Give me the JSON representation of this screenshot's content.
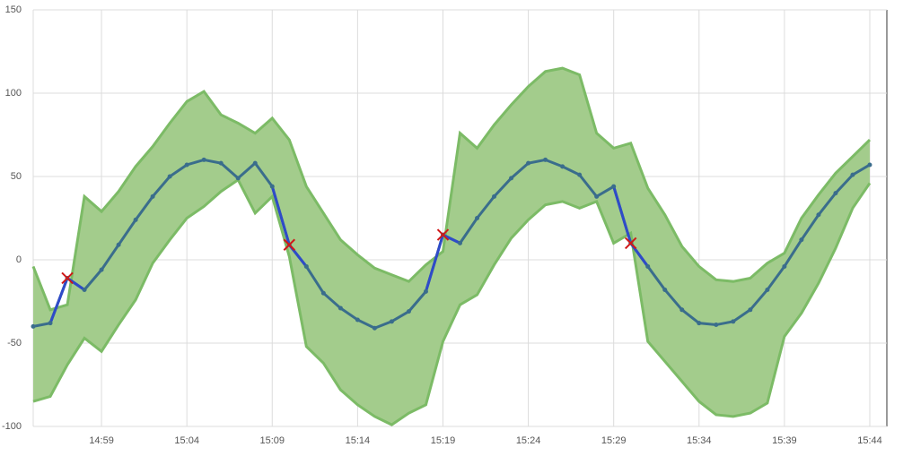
{
  "chart_data": {
    "type": "line",
    "x": [
      "14:55",
      "14:56",
      "14:57",
      "14:58",
      "14:59",
      "15:00",
      "15:01",
      "15:02",
      "15:03",
      "15:04",
      "15:05",
      "15:06",
      "15:07",
      "15:08",
      "15:09",
      "15:10",
      "15:11",
      "15:12",
      "15:13",
      "15:14",
      "15:15",
      "15:16",
      "15:17",
      "15:18",
      "15:19",
      "15:20",
      "15:21",
      "15:22",
      "15:23",
      "15:24",
      "15:25",
      "15:26",
      "15:27",
      "15:28",
      "15:29",
      "15:30",
      "15:31",
      "15:32",
      "15:33",
      "15:34",
      "15:35",
      "15:36",
      "15:37",
      "15:38",
      "15:39",
      "15:40",
      "15:41",
      "15:42",
      "15:43",
      "15:44"
    ],
    "series": [
      {
        "color": "#3a6d8c",
        "values": [
          -40,
          -38,
          -11,
          -18,
          -6,
          9,
          24,
          38,
          50,
          57,
          60,
          58,
          49,
          58,
          44,
          9,
          -4,
          -20,
          -29,
          -36,
          -41,
          -37,
          -31,
          -19,
          15,
          10,
          25,
          38,
          49,
          58,
          60,
          56,
          51,
          38,
          44,
          10,
          -4,
          -18,
          -30,
          -38,
          -39,
          -37,
          -30,
          -18,
          -4,
          12,
          27,
          40,
          51,
          57
        ]
      }
    ],
    "band": {
      "color": "#a3cc8c",
      "stroke": "#7cbb66",
      "upper": [
        -4,
        -30,
        -27,
        38,
        29,
        41,
        56,
        68,
        82,
        95,
        101,
        87,
        82,
        76,
        85,
        72,
        44,
        28,
        12,
        3,
        -5,
        -9,
        -13,
        -3,
        5,
        76,
        67,
        81,
        93,
        104,
        113,
        115,
        111,
        76,
        67,
        70,
        43,
        27,
        8,
        -4,
        -12,
        -13,
        -11,
        -2,
        4,
        25,
        39,
        52,
        62,
        72
      ],
      "lower": [
        -85,
        -82,
        -63,
        -47,
        -55,
        -39,
        -24,
        -2,
        12,
        25,
        32,
        41,
        48,
        28,
        38,
        2,
        -52,
        -62,
        -78,
        -87,
        -94,
        -99,
        -92,
        -87,
        -49,
        -27,
        -21,
        -3,
        13,
        24,
        33,
        35,
        31,
        35,
        10,
        16,
        -49,
        -61,
        -73,
        -85,
        -93,
        -94,
        -92,
        -86,
        -46,
        -32,
        -14,
        7,
        31,
        46
      ]
    },
    "anomalies": {
      "color": "#d01818",
      "line_color": "#2f4bc8",
      "values": [
        null,
        null,
        -11,
        null,
        null,
        null,
        null,
        null,
        null,
        null,
        null,
        null,
        null,
        null,
        null,
        9,
        null,
        null,
        null,
        null,
        null,
        null,
        null,
        null,
        15,
        null,
        null,
        null,
        null,
        null,
        null,
        null,
        null,
        null,
        null,
        10,
        null,
        null,
        null,
        null,
        null,
        null,
        null,
        null,
        null,
        null,
        null,
        null,
        null,
        null
      ]
    },
    "xlim": [
      "14:55",
      "15:45"
    ],
    "xticks": [
      "14:59",
      "15:04",
      "15:09",
      "15:14",
      "15:19",
      "15:24",
      "15:29",
      "15:34",
      "15:39",
      "15:44"
    ],
    "ylim": [
      -100,
      150
    ],
    "yticks": [
      -100,
      -50,
      0,
      50,
      100,
      150
    ],
    "grid": true
  }
}
